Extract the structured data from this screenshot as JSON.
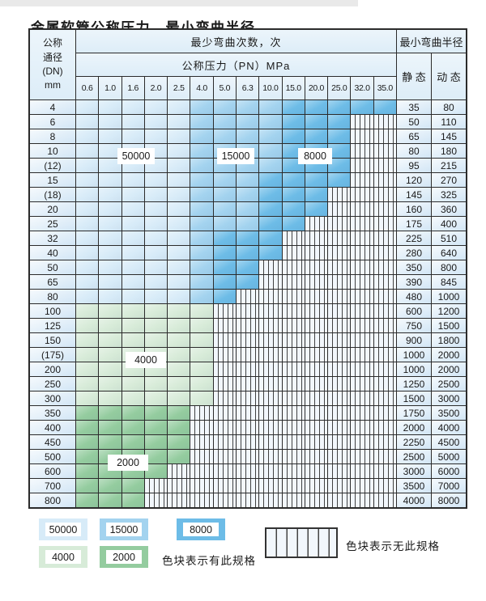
{
  "title": "金属软管公称压力、最小弯曲半径",
  "table": {
    "corner": {
      "line1": "公称",
      "line2": "通径",
      "line3": "(DN)",
      "line4": "mm"
    },
    "bend_cycles_header": "最少弯曲次数，次",
    "pressure_header": "公称压力（PN）MPa",
    "radius_header": "最小弯曲半径",
    "static_header": "静 态",
    "dynamic_header": "动 态",
    "pressure_columns": [
      "0.6",
      "1.0",
      "1.6",
      "2.0",
      "2.5",
      "4.0",
      "5.0",
      "6.3",
      "10.0",
      "15.0",
      "20.0",
      "25.0",
      "32.0",
      "35.0"
    ],
    "cell_legend": {
      "1": "50000",
      "2": "15000",
      "3": "8000",
      "4": "4000",
      "5": "2000",
      "x": "no-spec"
    },
    "rows": [
      {
        "dn": "4",
        "cells": "11111222233333",
        "static": "35",
        "dynamic": "80"
      },
      {
        "dn": "6",
        "cells": "111112222333xx",
        "static": "50",
        "dynamic": "110"
      },
      {
        "dn": "8",
        "cells": "111112222333xx",
        "static": "65",
        "dynamic": "145"
      },
      {
        "dn": "10",
        "cells": "111112222333xx",
        "static": "80",
        "dynamic": "180"
      },
      {
        "dn": "(12)",
        "cells": "111112222333xx",
        "static": "95",
        "dynamic": "215"
      },
      {
        "dn": "15",
        "cells": "111112223333xx",
        "static": "120",
        "dynamic": "270"
      },
      {
        "dn": "(18)",
        "cells": "11111222333xxx",
        "static": "145",
        "dynamic": "325"
      },
      {
        "dn": "20",
        "cells": "11111222333xxx",
        "static": "160",
        "dynamic": "360"
      },
      {
        "dn": "25",
        "cells": "1111122233xxxx",
        "static": "175",
        "dynamic": "400"
      },
      {
        "dn": "32",
        "cells": "111112333xxxxx",
        "static": "225",
        "dynamic": "510"
      },
      {
        "dn": "40",
        "cells": "111112333xxxxx",
        "static": "280",
        "dynamic": "640"
      },
      {
        "dn": "50",
        "cells": "11111233xxxxxx",
        "static": "350",
        "dynamic": "800"
      },
      {
        "dn": "65",
        "cells": "11111233xxxxxx",
        "static": "390",
        "dynamic": "845"
      },
      {
        "dn": "80",
        "cells": "1111123xxxxxxx",
        "static": "480",
        "dynamic": "1000"
      },
      {
        "dn": "100",
        "cells": "444444xxxxxxxx",
        "static": "600",
        "dynamic": "1200"
      },
      {
        "dn": "125",
        "cells": "444444xxxxxxxx",
        "static": "750",
        "dynamic": "1500"
      },
      {
        "dn": "150",
        "cells": "444444xxxxxxxx",
        "static": "900",
        "dynamic": "1800"
      },
      {
        "dn": "(175)",
        "cells": "444444xxxxxxxx",
        "static": "1000",
        "dynamic": "2000"
      },
      {
        "dn": "200",
        "cells": "444444xxxxxxxx",
        "static": "1000",
        "dynamic": "2000"
      },
      {
        "dn": "250",
        "cells": "444444xxxxxxxx",
        "static": "1250",
        "dynamic": "2500"
      },
      {
        "dn": "300",
        "cells": "444444xxxxxxxx",
        "static": "1500",
        "dynamic": "3000"
      },
      {
        "dn": "350",
        "cells": "55555xxxxxxxxx",
        "static": "1750",
        "dynamic": "3500"
      },
      {
        "dn": "400",
        "cells": "55555xxxxxxxxx",
        "static": "2000",
        "dynamic": "4000"
      },
      {
        "dn": "450",
        "cells": "55555xxxxxxxxx",
        "static": "2250",
        "dynamic": "4500"
      },
      {
        "dn": "500",
        "cells": "55555xxxxxxxxx",
        "static": "2500",
        "dynamic": "5000"
      },
      {
        "dn": "600",
        "cells": "5555xxxxxxxxxx",
        "static": "3000",
        "dynamic": "6000"
      },
      {
        "dn": "700",
        "cells": "555xxxxxxxxxxx",
        "static": "3500",
        "dynamic": "7000"
      },
      {
        "dn": "800",
        "cells": "555xxxxxxxxxxx",
        "static": "4000",
        "dynamic": "8000"
      }
    ]
  },
  "overlays": [
    {
      "label": "50000"
    },
    {
      "label": "15000"
    },
    {
      "label": "8000"
    },
    {
      "label": "4000"
    },
    {
      "label": "2000"
    }
  ],
  "legend": {
    "items": [
      {
        "label": "50000",
        "color": "c50000"
      },
      {
        "label": "15000",
        "color": "c15000"
      },
      {
        "label": "8000",
        "color": "c8000"
      },
      {
        "label": "4000",
        "color": "c4000"
      },
      {
        "label": "2000",
        "color": "c2000"
      }
    ],
    "has_spec_text": "色块表示有此规格",
    "no_spec_text": "色块表示无此规格"
  },
  "colors": {
    "c50000": "#d7ebf8",
    "c15000": "#a3d3ef",
    "c8000": "#6dbce7",
    "c4000": "#d7ebd8",
    "c2000": "#94cc9f",
    "hatchBg": "#f2f7fc",
    "headerBg": "#ddedf8",
    "labelBg": "#e7f2fa",
    "grid": "#2b2b2b"
  }
}
